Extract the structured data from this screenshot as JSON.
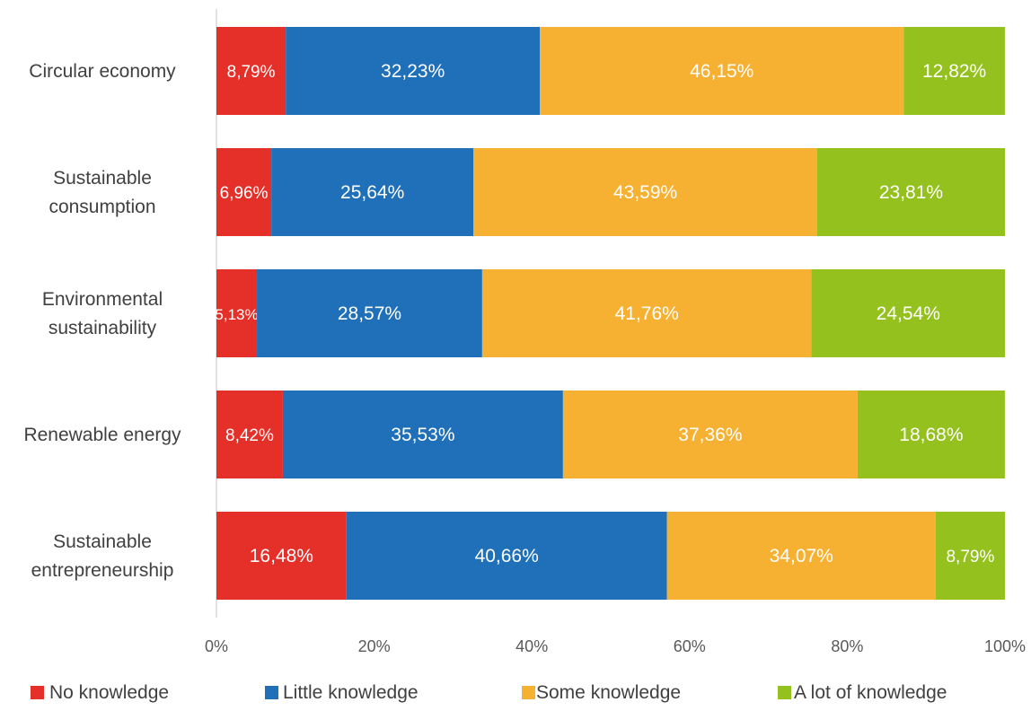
{
  "chart_data": {
    "type": "bar",
    "orientation": "horizontal",
    "stacked": "percent",
    "categories": [
      [
        "Circular economy"
      ],
      [
        "Sustainable",
        "consumption"
      ],
      [
        "Environmental",
        "sustainability"
      ],
      [
        "Renewable energy"
      ],
      [
        "Sustainable",
        "entrepreneurship"
      ]
    ],
    "series": [
      {
        "name": "No knowledge",
        "color": "#E5302A",
        "values": [
          8.79,
          6.96,
          5.13,
          8.42,
          16.48
        ],
        "labels": [
          "8,79%",
          "6,96%",
          "5,13%",
          "8,42%",
          "16,48%"
        ]
      },
      {
        "name": "Little knowledge",
        "color": "#1F70B9",
        "values": [
          32.23,
          25.64,
          28.57,
          35.53,
          40.66
        ],
        "labels": [
          "32,23%",
          "25,64%",
          "28,57%",
          "35,53%",
          "40,66%"
        ]
      },
      {
        "name": "Some knowledge",
        "color": "#F7B132",
        "values": [
          46.15,
          43.59,
          41.76,
          37.36,
          34.07
        ],
        "labels": [
          "46,15%",
          "43,59%",
          "41,76%",
          "37,36%",
          "34,07%"
        ]
      },
      {
        "name": "A lot of knowledge",
        "color": "#95C11F",
        "values": [
          12.82,
          23.81,
          24.54,
          18.68,
          8.79
        ],
        "labels": [
          "12,82%",
          "23,81%",
          "24,54%",
          "18,68%",
          "8,79%"
        ]
      }
    ],
    "x_ticks": [
      "0%",
      "20%",
      "40%",
      "60%",
      "80%",
      "100%"
    ],
    "xlim": [
      0,
      100
    ],
    "grid": false,
    "legend_position": "bottom",
    "title": "",
    "xlabel": "",
    "ylabel": ""
  }
}
